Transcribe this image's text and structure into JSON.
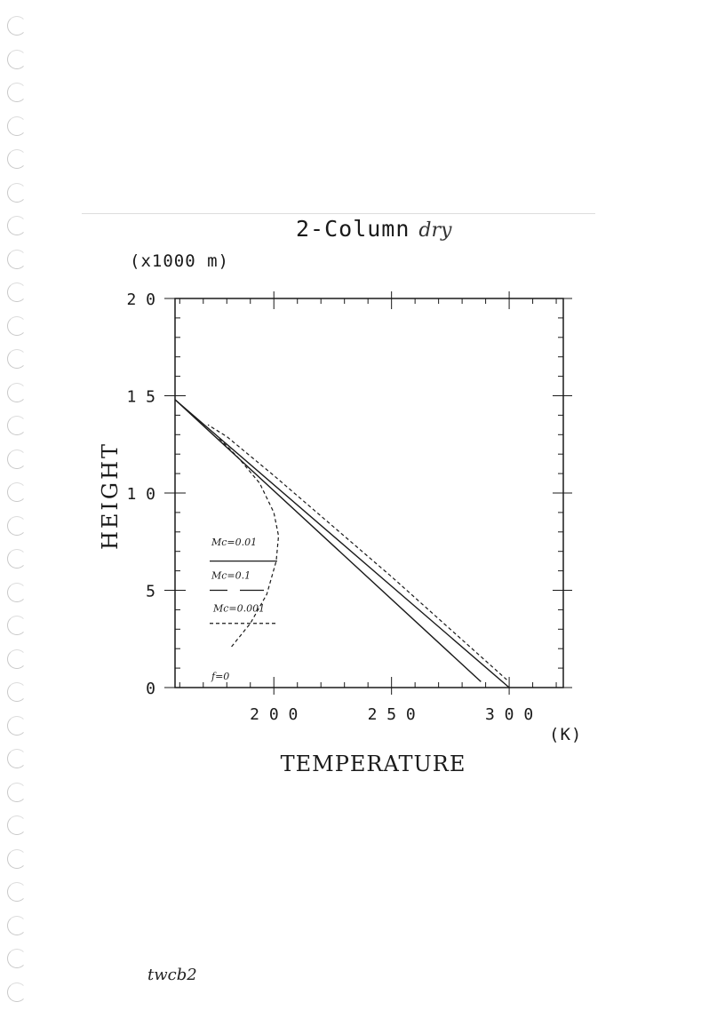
{
  "chart_data": {
    "type": "line",
    "title": "2-Column",
    "title_note": "dry",
    "xlabel": "TEMPERATURE",
    "xunit": "(K)",
    "ylabel": "HEIGHT",
    "yunit": "(x1000 m)",
    "xlim": [
      158,
      323
    ],
    "ylim": [
      0,
      20
    ],
    "xticks": [
      200,
      250,
      300
    ],
    "yticks": [
      0,
      5,
      10,
      15,
      20
    ],
    "grid": false,
    "legend_position": "left",
    "series": [
      {
        "name": "Mc=0.01",
        "style": "solid",
        "x": [
          300,
          158
        ],
        "y": [
          0,
          14.8
        ]
      },
      {
        "name": "Mc=0.1",
        "style": "solid",
        "x": [
          288,
          158
        ],
        "y": [
          0.3,
          14.8
        ]
      },
      {
        "name": "Mc=0.001",
        "style": "dashed",
        "x": [
          299,
          250,
          200,
          180,
          172
        ],
        "y": [
          0.4,
          5.7,
          10.9,
          12.9,
          13.5
        ]
      },
      {
        "name": "f=0",
        "style": "dashed",
        "x": [
          182,
          190,
          197,
          201,
          202,
          200,
          194,
          185,
          176
        ],
        "y": [
          2.1,
          3.3,
          4.8,
          6.5,
          7.8,
          9.0,
          10.5,
          11.8,
          12.9
        ]
      }
    ]
  },
  "footnote": "twcb2",
  "colors": {
    "ink": "#1a1a1a",
    "paper": "#ffffff"
  }
}
